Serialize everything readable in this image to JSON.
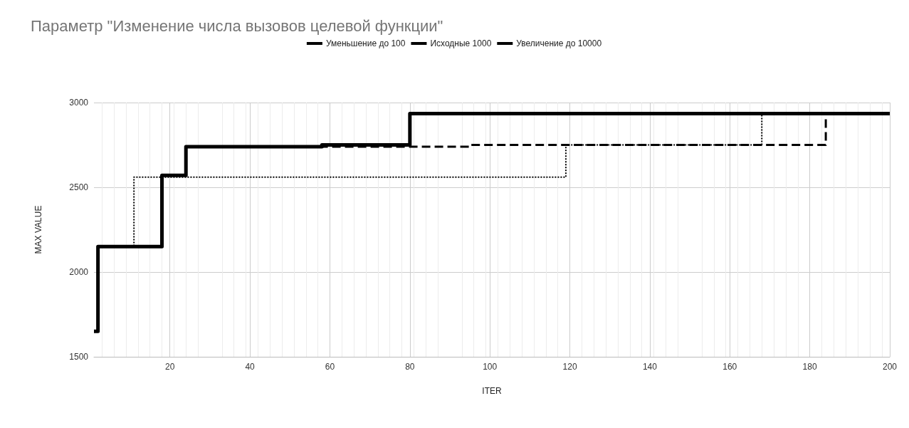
{
  "chart_data": {
    "type": "step",
    "title": "Параметр \"Изменение числа вызовов целевой функции\"",
    "xlabel": "ITER",
    "ylabel": "MAX VALUE",
    "xlim": [
      1,
      200
    ],
    "xticks": [
      20,
      40,
      60,
      80,
      100,
      120,
      140,
      160,
      180,
      200
    ],
    "ylim": [
      1500,
      3000
    ],
    "yticks": [
      1500,
      2000,
      2500,
      3000
    ],
    "grid": true,
    "legend": "top",
    "marker": "none",
    "series": [
      {
        "name": "Уменьшение до 100",
        "color": "#000000",
        "line_style": "dotted",
        "x": [
          1,
          2,
          11,
          119,
          168,
          200
        ],
        "values": [
          1650,
          2150,
          2560,
          2750,
          2935,
          2935
        ]
      },
      {
        "name": "Исходные 1000",
        "color": "#000000",
        "line_style": "dashed",
        "x": [
          1,
          2,
          18,
          24,
          95,
          184,
          200
        ],
        "values": [
          1650,
          2150,
          2570,
          2740,
          2750,
          2935,
          2935
        ]
      },
      {
        "name": "Увеличение до 10000",
        "color": "#000000",
        "line_style": "solid",
        "x": [
          1,
          2,
          18,
          24,
          58,
          80,
          200
        ],
        "values": [
          1650,
          2150,
          2570,
          2740,
          2750,
          2935,
          2935
        ]
      }
    ]
  }
}
